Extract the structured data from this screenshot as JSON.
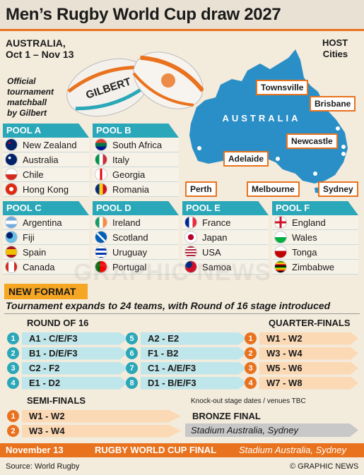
{
  "title": "Men’s Rugby World Cup draw 2027",
  "location": {
    "line1": "AUSTRALIA,",
    "line2": "Oct 1 – Nov 13"
  },
  "ball_note": {
    "line1": "Official",
    "line2": "tournament",
    "line3": "matchball",
    "line4": "by Gilbert"
  },
  "ball_brand": "GILBERT",
  "host": {
    "line1": "HOST",
    "line2": "Cities"
  },
  "map_label": "AUSTRALIA",
  "cities": [
    "Townsville",
    "Brisbane",
    "Newcastle",
    "Adelaide",
    "Perth",
    "Melbourne",
    "Sydney"
  ],
  "pools": [
    {
      "name": "POOL A",
      "teams": [
        "New Zealand",
        "Australia",
        "Chile",
        "Hong Kong"
      ]
    },
    {
      "name": "POOL B",
      "teams": [
        "South Africa",
        "Italy",
        "Georgia",
        "Romania"
      ]
    },
    {
      "name": "POOL C",
      "teams": [
        "Argentina",
        "Fiji",
        "Spain",
        "Canada"
      ]
    },
    {
      "name": "POOL D",
      "teams": [
        "Ireland",
        "Scotland",
        "Uruguay",
        "Portugal"
      ]
    },
    {
      "name": "POOL E",
      "teams": [
        "France",
        "Japan",
        "USA",
        "Samoa"
      ]
    },
    {
      "name": "POOL F",
      "teams": [
        "England",
        "Wales",
        "Tonga",
        "Zimbabwe"
      ]
    }
  ],
  "watermark": "GRAPHIC NEWS",
  "new_format": "NEW FORMAT",
  "format_note": "Tournament expands to 24 teams, with Round of 16 stage introduced",
  "round16": {
    "title": "ROUND OF 16",
    "matches": [
      {
        "n": "1",
        "m": "A1  -  C/E/F3"
      },
      {
        "n": "2",
        "m": "B1  -  D/E/F3"
      },
      {
        "n": "3",
        "m": "C2  -  F2"
      },
      {
        "n": "4",
        "m": "E1  -  D2"
      },
      {
        "n": "5",
        "m": "A2  -  E2"
      },
      {
        "n": "6",
        "m": "F1  -  B2"
      },
      {
        "n": "7",
        "m": "C1  -  A/E/F3"
      },
      {
        "n": "8",
        "m": "D1  -  B/E/F3"
      }
    ]
  },
  "quarter": {
    "title": "QUARTER-FINALS",
    "matches": [
      {
        "n": "1",
        "m": "W1  -  W2"
      },
      {
        "n": "2",
        "m": "W3  -  W4"
      },
      {
        "n": "3",
        "m": "W5  -  W6"
      },
      {
        "n": "4",
        "m": "W7  -  W8"
      }
    ]
  },
  "semi": {
    "title": "SEMI-FINALS",
    "matches": [
      {
        "n": "1",
        "m": "W1  -  W2"
      },
      {
        "n": "2",
        "m": "W3  -  W4"
      }
    ]
  },
  "ko_note": "Knock-out stage dates / venues TBC",
  "bronze": {
    "title": "BRONZE FINAL",
    "venue": "Stadium Australia, Sydney"
  },
  "final": {
    "date": "November 13",
    "label": "RUGBY WORLD CUP FINAL",
    "venue": "Stadium Australia, Sydney"
  },
  "source": "Source: World Rugby",
  "credit": "© GRAPHIC NEWS",
  "colors": {
    "teal": "#2aa7b8",
    "orange": "#e9721e",
    "amber": "#f5a623",
    "map": "#2b8fc7"
  }
}
